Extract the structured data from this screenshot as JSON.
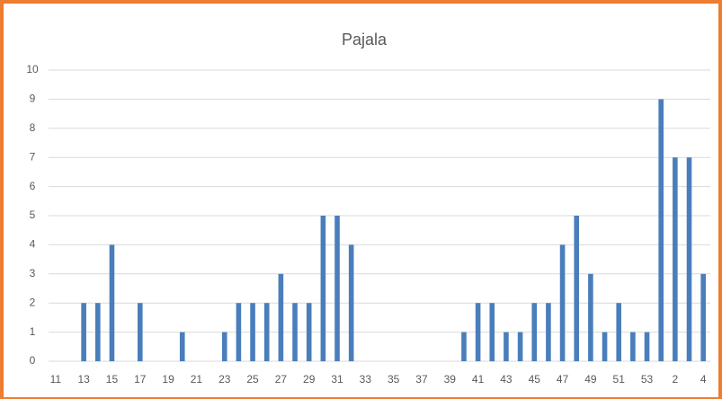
{
  "chart_data": {
    "type": "bar",
    "title": "Pajala",
    "categories": [
      "11",
      null,
      "13",
      null,
      "15",
      null,
      "17",
      null,
      "19",
      null,
      "21",
      null,
      "23",
      null,
      "25",
      null,
      "27",
      null,
      "29",
      null,
      "31",
      null,
      "33",
      null,
      "35",
      null,
      "37",
      null,
      "39",
      null,
      "41",
      null,
      "43",
      null,
      "45",
      null,
      "47",
      null,
      "49",
      null,
      "51",
      null,
      "53",
      null,
      "2",
      null,
      "4"
    ],
    "values": [
      0,
      0,
      2,
      2,
      4,
      0,
      2,
      0,
      0,
      1,
      0,
      0,
      1,
      2,
      2,
      2,
      3,
      2,
      2,
      5,
      5,
      4,
      0,
      0,
      0,
      0,
      0,
      0,
      0,
      1,
      2,
      2,
      1,
      1,
      2,
      2,
      4,
      5,
      3,
      1,
      2,
      1,
      1,
      9,
      7,
      7,
      3
    ],
    "color": "#4a7ebb",
    "ylim": [
      0,
      10
    ],
    "yticks": [
      0,
      1,
      2,
      3,
      4,
      5,
      6,
      7,
      8,
      9,
      10
    ],
    "grid": true
  }
}
